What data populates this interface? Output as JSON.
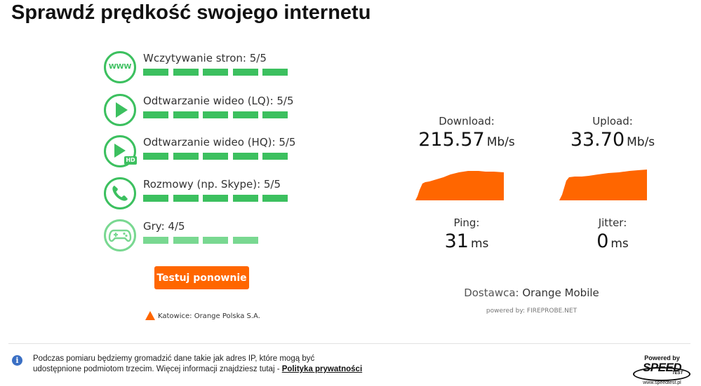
{
  "page": {
    "title": "Sprawdź prędkość swojego internetu"
  },
  "categories": [
    {
      "id": "web",
      "label": "Wczytywanie stron: 5/5",
      "score": 5,
      "max": 5,
      "icon": "www-icon"
    },
    {
      "id": "video-lq",
      "label": "Odtwarzanie wideo (LQ): 5/5",
      "score": 5,
      "max": 5,
      "icon": "play-icon"
    },
    {
      "id": "video-hq",
      "label": "Odtwarzanie wideo (HQ): 5/5",
      "score": 5,
      "max": 5,
      "icon": "play-hd-icon",
      "badge": "HD"
    },
    {
      "id": "calls",
      "label": "Rozmowy (np. Skype): 5/5",
      "score": 5,
      "max": 5,
      "icon": "phone-icon"
    },
    {
      "id": "games",
      "label": "Gry: 4/5",
      "score": 4,
      "max": 5,
      "icon": "gamepad-icon"
    }
  ],
  "actions": {
    "retest_label": "Testuj ponownie"
  },
  "server": {
    "label": "Katowice: Orange Polska S.A.",
    "icon": "warning-triangle-icon"
  },
  "results": {
    "download": {
      "label": "Download:",
      "value": "215.57",
      "unit": "Mb/s"
    },
    "upload": {
      "label": "Upload:",
      "value": "33.70",
      "unit": "Mb/s"
    },
    "ping": {
      "label": "Ping:",
      "value": "31",
      "unit": "ms"
    },
    "jitter": {
      "label": "Jitter:",
      "value": "0",
      "unit": "ms"
    }
  },
  "provider": {
    "label": "Dostawca:",
    "name": "Orange Mobile"
  },
  "powered_by": "powered by: FIREPROBE.NET",
  "footer": {
    "privacy_text": "Podczas pomiaru będziemy gromadzić dane takie jak adres IP, które mogą być udostępnione podmiotom trzecim. Więcej informacji znajdziesz tutaj - ",
    "privacy_link": "Polityka prywatności",
    "logo": {
      "powered": "Powered by",
      "brand": "SPEED",
      "brand_sub": "TEST",
      "url": "www.speedtest.pl"
    }
  },
  "colors": {
    "accent_orange": "#ff6600",
    "quality_green": "#3cc05f",
    "quality_green_light": "#79d891",
    "info_blue": "#3a6fc4"
  }
}
